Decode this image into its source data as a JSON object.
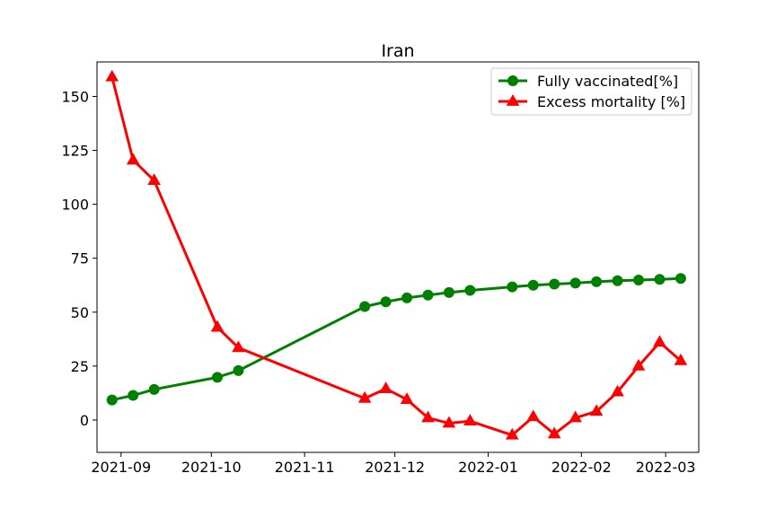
{
  "chart_data": {
    "type": "line",
    "title": "Iran",
    "xlabel": "",
    "ylabel": "",
    "x_ticks": [
      "2021-09",
      "2021-10",
      "2021-11",
      "2021-12",
      "2022-01",
      "2022-02",
      "2022-03"
    ],
    "y_ticks": [
      0,
      25,
      50,
      75,
      100,
      125,
      150
    ],
    "xlim": [
      "2021-08-24",
      "2022-03-12"
    ],
    "ylim": [
      -15,
      166
    ],
    "legend_position": "top-right",
    "grid": false,
    "series": [
      {
        "name": "Fully vaccinated[%]",
        "color": "#008000",
        "marker": "circle",
        "points": [
          {
            "x": "2021-08-29",
            "y": 9.3
          },
          {
            "x": "2021-09-05",
            "y": 11.4
          },
          {
            "x": "2021-09-12",
            "y": 14.2
          },
          {
            "x": "2021-10-03",
            "y": 19.8
          },
          {
            "x": "2021-10-10",
            "y": 22.9
          },
          {
            "x": "2021-11-21",
            "y": 52.6
          },
          {
            "x": "2021-11-28",
            "y": 54.8
          },
          {
            "x": "2021-12-05",
            "y": 56.6
          },
          {
            "x": "2021-12-12",
            "y": 57.9
          },
          {
            "x": "2021-12-19",
            "y": 59.1
          },
          {
            "x": "2021-12-26",
            "y": 60.1
          },
          {
            "x": "2022-01-09",
            "y": 61.7
          },
          {
            "x": "2022-01-16",
            "y": 62.5
          },
          {
            "x": "2022-01-23",
            "y": 63.0
          },
          {
            "x": "2022-01-30",
            "y": 63.5
          },
          {
            "x": "2022-02-06",
            "y": 64.1
          },
          {
            "x": "2022-02-13",
            "y": 64.6
          },
          {
            "x": "2022-02-20",
            "y": 64.9
          },
          {
            "x": "2022-02-27",
            "y": 65.2
          },
          {
            "x": "2022-03-06",
            "y": 65.6
          }
        ]
      },
      {
        "name": "Excess mortality [%]",
        "color": "#ff0000",
        "marker": "triangle",
        "points": [
          {
            "x": "2021-08-29",
            "y": 159.0
          },
          {
            "x": "2021-09-05",
            "y": 120.5
          },
          {
            "x": "2021-09-12",
            "y": 111.0
          },
          {
            "x": "2021-10-03",
            "y": 43.0
          },
          {
            "x": "2021-10-10",
            "y": 33.5
          },
          {
            "x": "2021-11-21",
            "y": 10.0
          },
          {
            "x": "2021-11-28",
            "y": 14.5
          },
          {
            "x": "2021-12-05",
            "y": 9.5
          },
          {
            "x": "2021-12-12",
            "y": 1.0
          },
          {
            "x": "2021-12-19",
            "y": -1.5
          },
          {
            "x": "2021-12-26",
            "y": -0.5
          },
          {
            "x": "2022-01-09",
            "y": -7.0
          },
          {
            "x": "2022-01-16",
            "y": 1.5
          },
          {
            "x": "2022-01-23",
            "y": -6.5
          },
          {
            "x": "2022-01-30",
            "y": 1.0
          },
          {
            "x": "2022-02-06",
            "y": 4.0
          },
          {
            "x": "2022-02-13",
            "y": 13.0
          },
          {
            "x": "2022-02-20",
            "y": 25.0
          },
          {
            "x": "2022-02-27",
            "y": 36.0
          },
          {
            "x": "2022-03-06",
            "y": 27.5
          }
        ]
      }
    ]
  }
}
